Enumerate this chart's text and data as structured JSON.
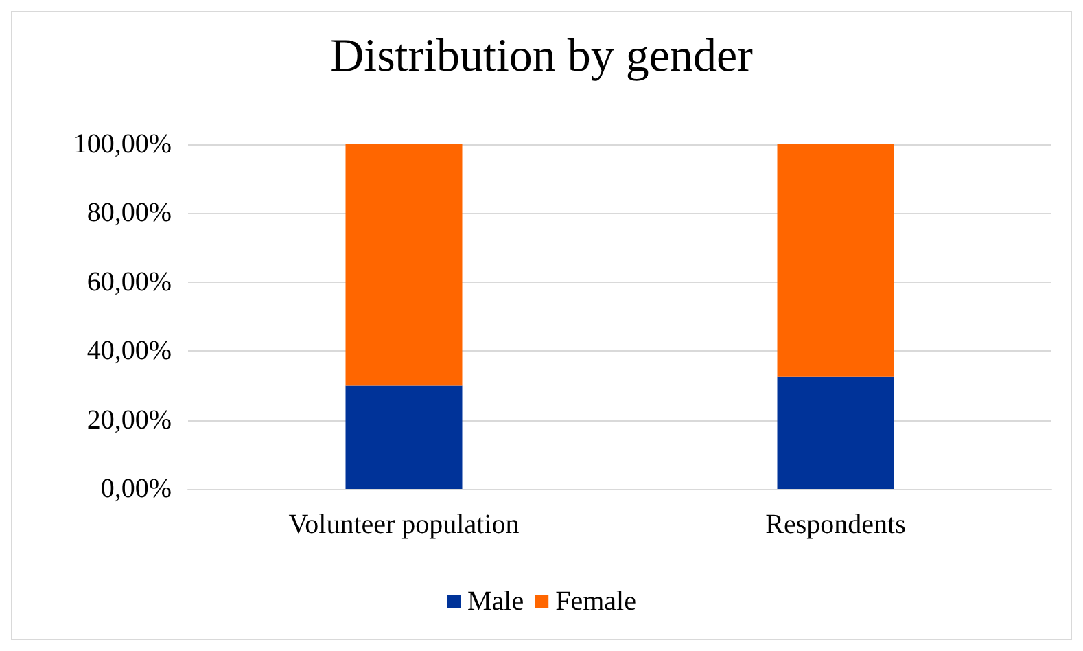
{
  "chart_data": {
    "type": "bar",
    "title": "Distribution by gender",
    "stacked": true,
    "categories": [
      "Volunteer population",
      "Respondents"
    ],
    "series": [
      {
        "name": "Male",
        "color": "#003399",
        "values": [
          30,
          32.5
        ]
      },
      {
        "name": "Female",
        "color": "#ff6600",
        "values": [
          70,
          67.5
        ]
      }
    ],
    "ylim": [
      0,
      100
    ],
    "yticks": [
      {
        "value": 0,
        "label": "0,00%"
      },
      {
        "value": 20,
        "label": "20,00%"
      },
      {
        "value": 40,
        "label": "40,00%"
      },
      {
        "value": 60,
        "label": "60,00%"
      },
      {
        "value": 80,
        "label": "80,00%"
      },
      {
        "value": 100,
        "label": "100,00%"
      }
    ],
    "grid": "y",
    "legend": "bottom"
  }
}
